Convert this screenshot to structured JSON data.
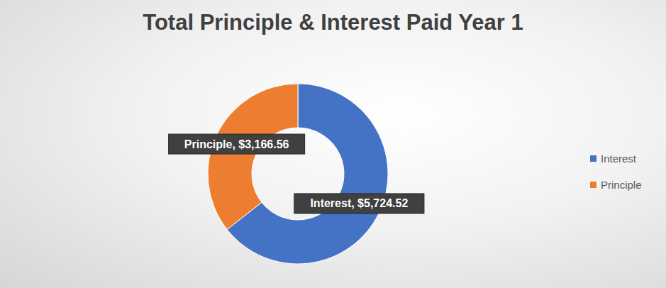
{
  "chart_data": {
    "type": "donut",
    "title": "Total Principle & Interest Paid Year 1",
    "categories": [
      "Interest",
      "Principle"
    ],
    "values": [
      5724.52,
      3166.56
    ],
    "value_labels": [
      "Interest, $5,724.52",
      "Principle, $3,166.56"
    ],
    "colors": [
      "#4472c4",
      "#ed7d31"
    ],
    "legend": "right",
    "data_labels": true
  }
}
